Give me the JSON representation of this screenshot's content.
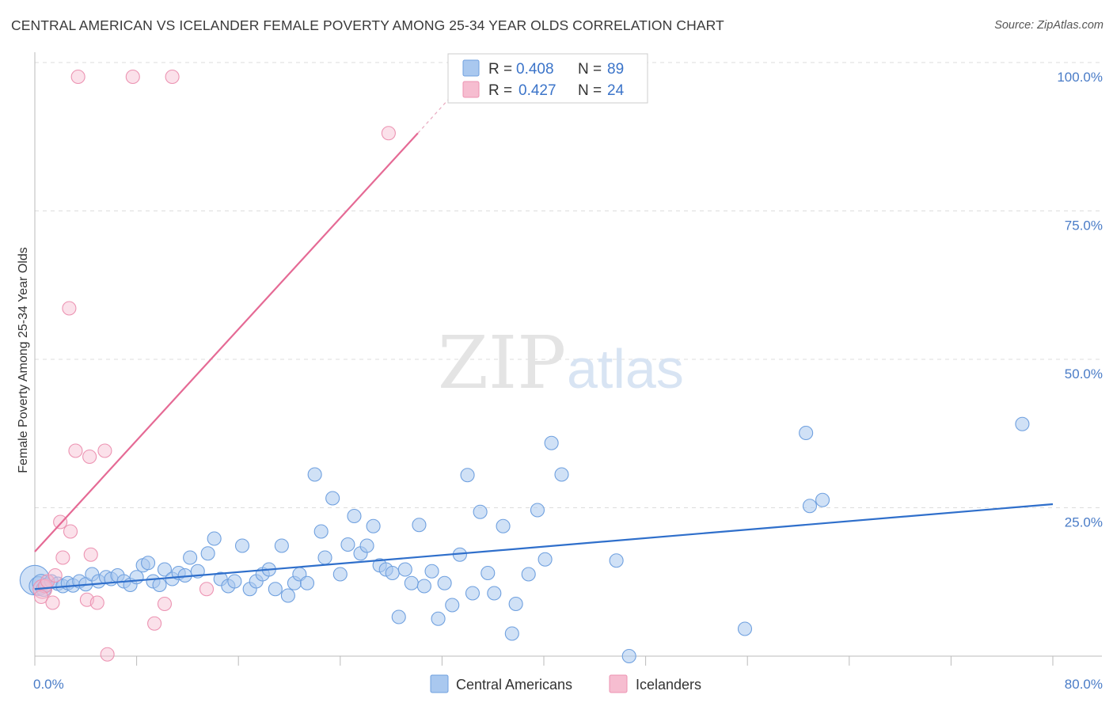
{
  "header": {
    "title": "CENTRAL AMERICAN VS ICELANDER FEMALE POVERTY AMONG 25-34 YEAR OLDS CORRELATION CHART",
    "source": "Source: ZipAtlas.com"
  },
  "watermark": {
    "part1": "ZIP",
    "part2": "atlas"
  },
  "legend": {
    "r_label": "R =",
    "n_label": "N =",
    "central": {
      "r": "0.408",
      "n": "89"
    },
    "icelander": {
      "r": "0.427",
      "n": "24"
    }
  },
  "colors": {
    "central_fill": "#a9c8ef",
    "central_stroke": "#6fa0df",
    "central_line": "#2f6fcb",
    "icelander_fill": "#f6bdd0",
    "icelander_stroke": "#ec93b2",
    "icelander_line": "#e56a95",
    "tick_text": "#4a7cc7",
    "grid": "#dddddd"
  },
  "chart_data": {
    "type": "scatter",
    "title": "CENTRAL AMERICAN VS ICELANDER FEMALE POVERTY AMONG 25-34 YEAR OLDS CORRELATION CHART",
    "xlabel": "",
    "ylabel": "Female Poverty Among 25-34 Year Olds",
    "xlim": [
      0,
      80
    ],
    "ylim": [
      0,
      100
    ],
    "x_tick_labels": [
      "0.0%",
      "80.0%"
    ],
    "y_tick_labels": [
      "25.0%",
      "50.0%",
      "75.0%",
      "100.0%"
    ],
    "y_ticks": [
      25,
      50,
      75,
      100
    ],
    "grid": true,
    "legend_position": "top-center",
    "series": [
      {
        "name": "Central Americans",
        "color": "#a9c8ef",
        "trend": {
          "x": [
            0,
            80
          ],
          "y": [
            11.3,
            25.6
          ]
        },
        "points": [
          [
            0.0,
            12.8,
            2.2
          ],
          [
            0.3,
            11.8,
            1.4
          ],
          [
            0.5,
            12.3,
            1.3
          ],
          [
            0.7,
            11.3,
            1.1
          ],
          [
            0.9,
            12.0,
            1
          ],
          [
            1.3,
            12.6,
            1
          ],
          [
            1.8,
            12.2,
            1
          ],
          [
            2.2,
            11.8,
            1
          ],
          [
            2.6,
            12.3,
            1
          ],
          [
            3.0,
            11.9,
            1
          ],
          [
            3.5,
            12.6,
            1
          ],
          [
            4.0,
            12.1,
            1
          ],
          [
            4.5,
            13.8,
            1
          ],
          [
            5.0,
            12.6,
            1
          ],
          [
            5.6,
            13.3,
            1
          ],
          [
            6.0,
            13.0,
            1
          ],
          [
            6.5,
            13.6,
            1
          ],
          [
            7.0,
            12.6,
            1
          ],
          [
            7.5,
            12.0,
            1
          ],
          [
            8.0,
            13.3,
            1
          ],
          [
            8.5,
            15.3,
            1
          ],
          [
            8.9,
            15.7,
            1
          ],
          [
            9.3,
            12.6,
            1
          ],
          [
            9.8,
            12.0,
            1
          ],
          [
            10.2,
            14.6,
            1
          ],
          [
            10.8,
            13.0,
            1
          ],
          [
            11.3,
            14.0,
            1
          ],
          [
            11.8,
            13.6,
            1
          ],
          [
            12.2,
            16.6,
            1
          ],
          [
            12.8,
            14.3,
            1
          ],
          [
            13.6,
            17.3,
            1
          ],
          [
            14.1,
            19.8,
            1
          ],
          [
            14.6,
            13.0,
            1
          ],
          [
            15.2,
            11.8,
            1
          ],
          [
            15.7,
            12.6,
            1
          ],
          [
            16.3,
            18.6,
            1
          ],
          [
            16.9,
            11.3,
            1
          ],
          [
            17.4,
            12.6,
            1
          ],
          [
            17.9,
            13.8,
            1
          ],
          [
            18.4,
            14.6,
            1
          ],
          [
            18.9,
            11.3,
            1
          ],
          [
            19.4,
            18.6,
            1
          ],
          [
            19.9,
            10.2,
            1
          ],
          [
            20.4,
            12.3,
            1
          ],
          [
            20.8,
            13.8,
            1
          ],
          [
            21.4,
            12.3,
            1
          ],
          [
            22.0,
            30.6,
            1
          ],
          [
            22.5,
            21.0,
            1
          ],
          [
            22.8,
            16.6,
            1
          ],
          [
            23.4,
            26.6,
            1
          ],
          [
            24.0,
            13.8,
            1
          ],
          [
            24.6,
            18.8,
            1
          ],
          [
            25.1,
            23.6,
            1
          ],
          [
            25.6,
            17.3,
            1
          ],
          [
            26.1,
            18.6,
            1
          ],
          [
            26.6,
            21.9,
            1
          ],
          [
            27.1,
            15.3,
            1
          ],
          [
            27.6,
            14.6,
            1
          ],
          [
            28.1,
            14.0,
            1
          ],
          [
            28.6,
            6.6,
            1
          ],
          [
            29.1,
            14.6,
            1
          ],
          [
            29.6,
            12.3,
            1
          ],
          [
            30.2,
            22.1,
            1
          ],
          [
            30.6,
            11.8,
            1
          ],
          [
            31.2,
            14.3,
            1
          ],
          [
            31.7,
            6.3,
            1
          ],
          [
            32.2,
            12.3,
            1
          ],
          [
            32.8,
            8.6,
            1
          ],
          [
            33.4,
            17.1,
            1
          ],
          [
            34.0,
            30.5,
            1
          ],
          [
            34.4,
            10.6,
            1
          ],
          [
            35.0,
            24.3,
            1
          ],
          [
            35.6,
            14.0,
            1
          ],
          [
            36.1,
            10.6,
            1
          ],
          [
            36.8,
            21.9,
            1
          ],
          [
            37.5,
            3.8,
            1
          ],
          [
            37.8,
            8.8,
            1
          ],
          [
            38.8,
            13.8,
            1
          ],
          [
            39.5,
            24.6,
            1
          ],
          [
            40.6,
            35.9,
            1
          ],
          [
            41.4,
            30.6,
            1
          ],
          [
            45.7,
            16.1,
            1
          ],
          [
            46.7,
            0.0,
            1
          ],
          [
            55.8,
            4.6,
            1
          ],
          [
            60.6,
            37.6,
            1
          ],
          [
            60.9,
            25.3,
            1
          ],
          [
            61.9,
            26.3,
            1
          ],
          [
            77.6,
            39.1,
            1
          ],
          [
            40.1,
            16.3,
            1
          ]
        ]
      },
      {
        "name": "Icelanders",
        "color": "#f6bdd0",
        "trend": {
          "x": [
            0,
            30.1
          ],
          "y": [
            17.6,
            88.1
          ]
        },
        "trend_dashed": {
          "x": [
            30.1,
            33.9
          ],
          "y": [
            88.1,
            97.1
          ]
        },
        "points": [
          [
            0.6,
            11.3,
            1.4
          ],
          [
            0.8,
            11.8,
            1
          ],
          [
            1.0,
            12.6,
            1
          ],
          [
            0.5,
            10.0,
            1
          ],
          [
            1.4,
            9.0,
            1
          ],
          [
            1.6,
            13.6,
            1
          ],
          [
            2.0,
            22.6,
            1
          ],
          [
            2.2,
            16.6,
            1
          ],
          [
            2.8,
            21.0,
            1
          ],
          [
            2.7,
            58.6,
            1
          ],
          [
            3.2,
            34.6,
            1
          ],
          [
            3.4,
            97.6,
            1
          ],
          [
            4.1,
            9.5,
            1
          ],
          [
            4.4,
            17.1,
            1
          ],
          [
            4.3,
            33.6,
            1
          ],
          [
            4.9,
            9.0,
            1
          ],
          [
            5.5,
            34.6,
            1
          ],
          [
            5.7,
            0.3,
            1
          ],
          [
            7.7,
            97.6,
            1
          ],
          [
            9.4,
            5.5,
            1
          ],
          [
            10.2,
            8.8,
            1
          ],
          [
            10.8,
            97.6,
            1
          ],
          [
            13.5,
            11.3,
            1
          ],
          [
            27.8,
            88.1,
            1
          ]
        ]
      }
    ]
  },
  "bottom_legend": {
    "central_label": "Central Americans",
    "icelander_label": "Icelanders"
  }
}
